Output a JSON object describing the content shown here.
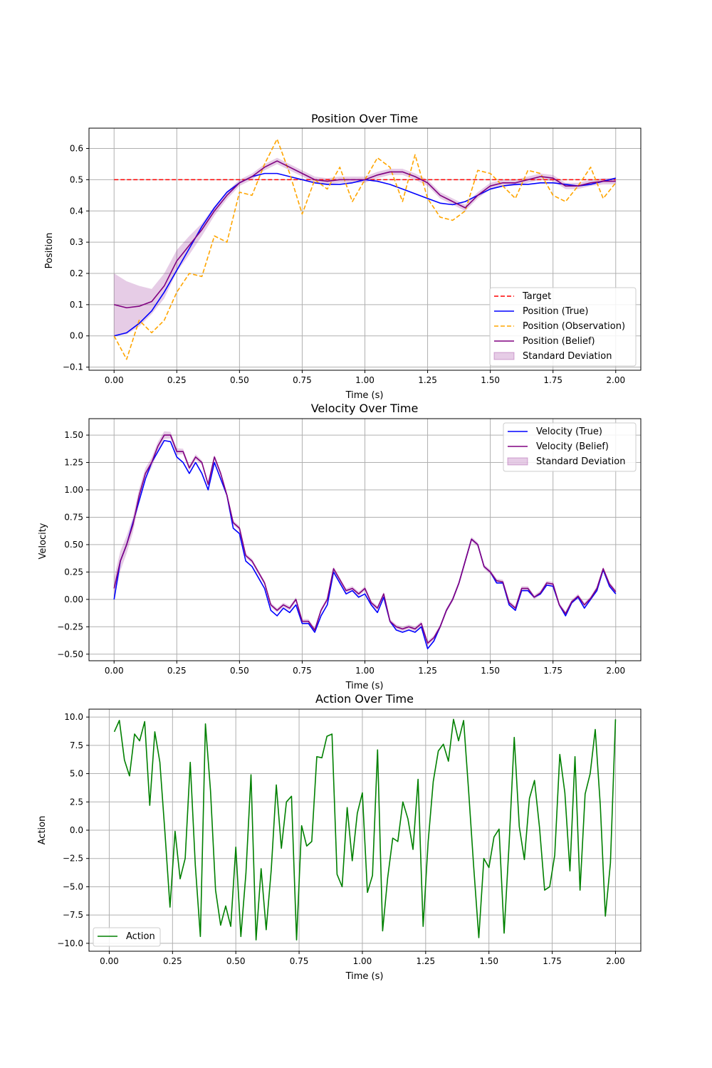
{
  "colors": {
    "target": "#ff0000",
    "true": "#0000ff",
    "observation": "#ffa500",
    "belief": "#800080",
    "std_fill": "#800080",
    "action": "#008000",
    "grid": "#b0b0b0"
  },
  "chart_data": [
    {
      "type": "line",
      "title": "Position Over Time",
      "xlabel": "Time (s)",
      "ylabel": "Position",
      "xlim": [
        -0.1,
        2.1
      ],
      "ylim": [
        -0.11,
        0.665
      ],
      "xticks": [
        "0.00",
        "0.25",
        "0.50",
        "0.75",
        "1.00",
        "1.25",
        "1.50",
        "1.75",
        "2.00"
      ],
      "xtick_values": [
        0,
        0.25,
        0.5,
        0.75,
        1.0,
        1.25,
        1.5,
        1.75,
        2.0
      ],
      "yticks": [
        "−0.1",
        "0.0",
        "0.1",
        "0.2",
        "0.3",
        "0.4",
        "0.5",
        "0.6"
      ],
      "ytick_values": [
        -0.1,
        0,
        0.1,
        0.2,
        0.3,
        0.4,
        0.5,
        0.6
      ],
      "grid": true,
      "legend_position": "lower-right",
      "legend": [
        "Target",
        "Position (True)",
        "Position (Observation)",
        "Position (Belief)",
        "Standard Deviation"
      ],
      "x": [
        0.0,
        0.05,
        0.1,
        0.15,
        0.2,
        0.25,
        0.3,
        0.35,
        0.4,
        0.45,
        0.5,
        0.55,
        0.6,
        0.65,
        0.7,
        0.75,
        0.8,
        0.85,
        0.9,
        0.95,
        1.0,
        1.05,
        1.1,
        1.15,
        1.2,
        1.25,
        1.3,
        1.35,
        1.4,
        1.45,
        1.5,
        1.55,
        1.6,
        1.65,
        1.7,
        1.75,
        1.8,
        1.85,
        1.9,
        1.95,
        2.0
      ],
      "series": [
        {
          "name": "Target",
          "style": "dashed",
          "color": "#ff0000",
          "values": [
            0.5,
            0.5,
            0.5,
            0.5,
            0.5,
            0.5,
            0.5,
            0.5,
            0.5,
            0.5,
            0.5,
            0.5,
            0.5,
            0.5,
            0.5,
            0.5,
            0.5,
            0.5,
            0.5,
            0.5,
            0.5,
            0.5,
            0.5,
            0.5,
            0.5,
            0.5,
            0.5,
            0.5,
            0.5,
            0.5,
            0.5,
            0.5,
            0.5,
            0.5,
            0.5,
            0.5,
            0.5,
            0.5,
            0.5,
            0.5,
            0.5
          ]
        },
        {
          "name": "Position (True)",
          "style": "solid",
          "color": "#0000ff",
          "values": [
            0.0,
            0.01,
            0.04,
            0.08,
            0.14,
            0.21,
            0.28,
            0.35,
            0.41,
            0.46,
            0.49,
            0.51,
            0.52,
            0.52,
            0.51,
            0.5,
            0.49,
            0.485,
            0.485,
            0.49,
            0.5,
            0.495,
            0.485,
            0.47,
            0.455,
            0.44,
            0.425,
            0.42,
            0.43,
            0.45,
            0.47,
            0.48,
            0.485,
            0.485,
            0.49,
            0.49,
            0.485,
            0.48,
            0.485,
            0.495,
            0.505
          ]
        },
        {
          "name": "Position (Observation)",
          "style": "dashed",
          "color": "#ffa500",
          "values": [
            0.0,
            -0.075,
            0.05,
            0.01,
            0.05,
            0.14,
            0.2,
            0.19,
            0.32,
            0.3,
            0.46,
            0.45,
            0.55,
            0.63,
            0.52,
            0.39,
            0.5,
            0.47,
            0.54,
            0.43,
            0.5,
            0.57,
            0.54,
            0.43,
            0.58,
            0.44,
            0.38,
            0.37,
            0.4,
            0.53,
            0.52,
            0.48,
            0.44,
            0.53,
            0.52,
            0.45,
            0.43,
            0.48,
            0.54,
            0.44,
            0.49
          ]
        },
        {
          "name": "Position (Belief)",
          "style": "solid",
          "color": "#800080",
          "values": [
            0.1,
            0.09,
            0.095,
            0.11,
            0.16,
            0.24,
            0.29,
            0.34,
            0.4,
            0.45,
            0.49,
            0.51,
            0.54,
            0.56,
            0.54,
            0.52,
            0.5,
            0.495,
            0.5,
            0.5,
            0.5,
            0.515,
            0.525,
            0.525,
            0.51,
            0.49,
            0.45,
            0.43,
            0.41,
            0.45,
            0.48,
            0.49,
            0.49,
            0.5,
            0.51,
            0.505,
            0.48,
            0.48,
            0.49,
            0.495,
            0.495
          ]
        },
        {
          "name": "Standard Deviation",
          "style": "band",
          "color": "#800080",
          "values": [
            0.1,
            0.09,
            0.095,
            0.11,
            0.16,
            0.24,
            0.29,
            0.34,
            0.4,
            0.45,
            0.49,
            0.51,
            0.54,
            0.56,
            0.54,
            0.52,
            0.5,
            0.495,
            0.5,
            0.5,
            0.5,
            0.515,
            0.525,
            0.525,
            0.51,
            0.49,
            0.45,
            0.43,
            0.41,
            0.45,
            0.48,
            0.49,
            0.49,
            0.5,
            0.51,
            0.505,
            0.48,
            0.48,
            0.49,
            0.495,
            0.495
          ],
          "std": [
            0.1,
            0.085,
            0.065,
            0.04,
            0.04,
            0.035,
            0.03,
            0.02,
            0.015,
            0.012,
            0.01,
            0.01,
            0.01,
            0.01,
            0.01,
            0.01,
            0.01,
            0.01,
            0.01,
            0.01,
            0.01,
            0.01,
            0.01,
            0.01,
            0.01,
            0.01,
            0.01,
            0.01,
            0.01,
            0.01,
            0.01,
            0.01,
            0.01,
            0.01,
            0.01,
            0.01,
            0.01,
            0.01,
            0.01,
            0.01,
            0.01
          ]
        }
      ]
    },
    {
      "type": "line",
      "title": "Velocity Over Time",
      "xlabel": "Time (s)",
      "ylabel": "Velocity",
      "xlim": [
        -0.1,
        2.1
      ],
      "ylim": [
        -0.56,
        1.65
      ],
      "xticks": [
        "0.00",
        "0.25",
        "0.50",
        "0.75",
        "1.00",
        "1.25",
        "1.50",
        "1.75",
        "2.00"
      ],
      "xtick_values": [
        0,
        0.25,
        0.5,
        0.75,
        1.0,
        1.25,
        1.5,
        1.75,
        2.0
      ],
      "yticks": [
        "−0.50",
        "−0.25",
        "0.00",
        "0.25",
        "0.50",
        "0.75",
        "1.00",
        "1.25",
        "1.50"
      ],
      "ytick_values": [
        -0.5,
        -0.25,
        0,
        0.25,
        0.5,
        0.75,
        1.0,
        1.25,
        1.5
      ],
      "grid": true,
      "legend_position": "upper-right",
      "legend": [
        "Velocity (True)",
        "Velocity (Belief)",
        "Standard Deviation"
      ],
      "x": [
        0.0,
        0.025,
        0.05,
        0.075,
        0.1,
        0.125,
        0.15,
        0.175,
        0.2,
        0.225,
        0.25,
        0.275,
        0.3,
        0.325,
        0.35,
        0.375,
        0.4,
        0.425,
        0.45,
        0.475,
        0.5,
        0.525,
        0.55,
        0.575,
        0.6,
        0.625,
        0.65,
        0.675,
        0.7,
        0.725,
        0.75,
        0.775,
        0.8,
        0.825,
        0.85,
        0.875,
        0.9,
        0.925,
        0.95,
        0.975,
        1.0,
        1.025,
        1.05,
        1.075,
        1.1,
        1.125,
        1.15,
        1.175,
        1.2,
        1.225,
        1.25,
        1.275,
        1.3,
        1.325,
        1.35,
        1.375,
        1.4,
        1.425,
        1.45,
        1.475,
        1.5,
        1.525,
        1.55,
        1.575,
        1.6,
        1.625,
        1.65,
        1.675,
        1.7,
        1.725,
        1.75,
        1.775,
        1.8,
        1.825,
        1.85,
        1.875,
        1.9,
        1.925,
        1.95,
        1.975,
        2.0
      ],
      "series": [
        {
          "name": "Velocity (True)",
          "style": "solid",
          "color": "#0000ff",
          "values": [
            0.0,
            0.35,
            0.5,
            0.7,
            0.9,
            1.1,
            1.25,
            1.35,
            1.45,
            1.44,
            1.3,
            1.25,
            1.15,
            1.25,
            1.15,
            1.0,
            1.25,
            1.1,
            0.95,
            0.65,
            0.6,
            0.35,
            0.3,
            0.2,
            0.1,
            -0.1,
            -0.15,
            -0.08,
            -0.12,
            -0.05,
            -0.22,
            -0.22,
            -0.3,
            -0.15,
            -0.05,
            0.25,
            0.15,
            0.05,
            0.08,
            0.02,
            0.05,
            -0.05,
            -0.12,
            0.02,
            -0.2,
            -0.28,
            -0.3,
            -0.28,
            -0.3,
            -0.25,
            -0.45,
            -0.38,
            -0.25,
            -0.1,
            0.0,
            0.15,
            0.35,
            0.55,
            0.5,
            0.3,
            0.25,
            0.15,
            0.15,
            -0.05,
            -0.1,
            0.08,
            0.08,
            0.02,
            0.05,
            0.13,
            0.12,
            -0.05,
            -0.15,
            -0.03,
            0.02,
            -0.08,
            0.0,
            0.08,
            0.27,
            0.12,
            0.05
          ]
        },
        {
          "name": "Velocity (Belief)",
          "style": "solid",
          "color": "#800080",
          "values": [
            0.1,
            0.35,
            0.5,
            0.68,
            0.95,
            1.15,
            1.25,
            1.4,
            1.5,
            1.5,
            1.35,
            1.35,
            1.2,
            1.3,
            1.25,
            1.05,
            1.3,
            1.15,
            0.95,
            0.7,
            0.65,
            0.4,
            0.35,
            0.25,
            0.15,
            -0.05,
            -0.1,
            -0.05,
            -0.08,
            0.0,
            -0.2,
            -0.2,
            -0.28,
            -0.1,
            0.0,
            0.28,
            0.18,
            0.08,
            0.1,
            0.05,
            0.1,
            -0.03,
            -0.08,
            0.05,
            -0.2,
            -0.25,
            -0.27,
            -0.25,
            -0.27,
            -0.22,
            -0.4,
            -0.35,
            -0.25,
            -0.1,
            0.0,
            0.15,
            0.35,
            0.55,
            0.5,
            0.3,
            0.25,
            0.17,
            0.16,
            -0.03,
            -0.08,
            0.1,
            0.1,
            0.02,
            0.06,
            0.15,
            0.14,
            -0.05,
            -0.13,
            -0.02,
            0.03,
            -0.05,
            0.01,
            0.1,
            0.28,
            0.14,
            0.07
          ]
        },
        {
          "name": "Standard Deviation",
          "style": "band",
          "color": "#800080",
          "values": [
            0.1,
            0.35,
            0.5,
            0.68,
            0.95,
            1.15,
            1.25,
            1.4,
            1.5,
            1.5,
            1.35,
            1.35,
            1.2,
            1.3,
            1.25,
            1.05,
            1.3,
            1.15,
            0.95,
            0.7,
            0.65,
            0.4,
            0.35,
            0.25,
            0.15,
            -0.05,
            -0.1,
            -0.05,
            -0.08,
            0.0,
            -0.2,
            -0.2,
            -0.28,
            -0.1,
            0.0,
            0.28,
            0.18,
            0.08,
            0.1,
            0.05,
            0.1,
            -0.03,
            -0.08,
            0.05,
            -0.2,
            -0.25,
            -0.27,
            -0.25,
            -0.27,
            -0.22,
            -0.4,
            -0.35,
            -0.25,
            -0.1,
            0.0,
            0.15,
            0.35,
            0.55,
            0.5,
            0.3,
            0.25,
            0.17,
            0.16,
            -0.03,
            -0.08,
            0.1,
            0.1,
            0.02,
            0.06,
            0.15,
            0.14,
            -0.05,
            -0.13,
            -0.02,
            0.03,
            -0.05,
            0.01,
            0.1,
            0.28,
            0.14,
            0.07
          ],
          "std": [
            0.1,
            0.09,
            0.08,
            0.07,
            0.06,
            0.05,
            0.045,
            0.04,
            0.035,
            0.03,
            0.03,
            0.025,
            0.025,
            0.025,
            0.02,
            0.02,
            0.02,
            0.02,
            0.02,
            0.02,
            0.02,
            0.02,
            0.02,
            0.02,
            0.02,
            0.02,
            0.02,
            0.02,
            0.02,
            0.02,
            0.02,
            0.02,
            0.02,
            0.02,
            0.02,
            0.02,
            0.02,
            0.02,
            0.02,
            0.02,
            0.02,
            0.02,
            0.02,
            0.02,
            0.02,
            0.02,
            0.02,
            0.02,
            0.02,
            0.02,
            0.02,
            0.02,
            0.02,
            0.02,
            0.02,
            0.02,
            0.02,
            0.02,
            0.02,
            0.02,
            0.02,
            0.02,
            0.02,
            0.02,
            0.02,
            0.02,
            0.02,
            0.02,
            0.02,
            0.02,
            0.02,
            0.02,
            0.02,
            0.02,
            0.02,
            0.02,
            0.02,
            0.02,
            0.02,
            0.02,
            0.02
          ]
        }
      ]
    },
    {
      "type": "line",
      "title": "Action Over Time",
      "xlabel": "Time (s)",
      "ylabel": "Action",
      "xlim": [
        -0.08,
        2.1
      ],
      "ylim": [
        -10.7,
        10.7
      ],
      "xticks": [
        "0.00",
        "0.25",
        "0.50",
        "0.75",
        "1.00",
        "1.25",
        "1.50",
        "1.75",
        "2.00"
      ],
      "xtick_values": [
        0,
        0.25,
        0.5,
        0.75,
        1.0,
        1.25,
        1.5,
        1.75,
        2.0
      ],
      "yticks": [
        "−10.0",
        "−7.5",
        "−5.0",
        "−2.5",
        "0.0",
        "2.5",
        "5.0",
        "7.5",
        "10.0"
      ],
      "ytick_values": [
        -10,
        -7.5,
        -5,
        -2.5,
        0,
        2.5,
        5,
        7.5,
        10
      ],
      "grid": true,
      "legend_position": "lower-left",
      "legend": [
        "Action"
      ],
      "x": [
        0.02,
        0.04,
        0.06,
        0.08,
        0.1,
        0.12,
        0.14,
        0.16,
        0.18,
        0.2,
        0.22,
        0.24,
        0.26,
        0.28,
        0.3,
        0.32,
        0.34,
        0.36,
        0.38,
        0.4,
        0.42,
        0.44,
        0.46,
        0.48,
        0.5,
        0.52,
        0.54,
        0.56,
        0.58,
        0.6,
        0.62,
        0.64,
        0.66,
        0.68,
        0.7,
        0.72,
        0.74,
        0.76,
        0.78,
        0.8,
        0.82,
        0.84,
        0.86,
        0.88,
        0.9,
        0.92,
        0.94,
        0.96,
        0.98,
        1.0,
        1.02,
        1.04,
        1.06,
        1.08,
        1.1,
        1.12,
        1.14,
        1.16,
        1.18,
        1.2,
        1.22,
        1.24,
        1.26,
        1.28,
        1.3,
        1.32,
        1.34,
        1.36,
        1.38,
        1.4,
        1.42,
        1.44,
        1.46,
        1.48,
        1.5,
        1.52,
        1.54,
        1.56,
        1.58,
        1.6,
        1.62,
        1.64,
        1.66,
        1.68,
        1.7,
        1.72,
        1.74,
        1.76,
        1.78,
        1.8,
        1.82,
        1.84,
        1.86,
        1.88,
        1.9,
        1.92,
        1.94,
        1.96,
        1.98,
        2.0
      ],
      "series": [
        {
          "name": "Action",
          "style": "solid",
          "color": "#008000",
          "values": [
            8.7,
            9.7,
            6.2,
            4.8,
            8.5,
            7.9,
            9.6,
            2.2,
            8.7,
            6.0,
            -0.2,
            -6.8,
            -0.1,
            -4.3,
            -2.5,
            6.0,
            -3.1,
            -9.4,
            9.4,
            3.5,
            -5.3,
            -8.4,
            -6.7,
            -8.5,
            -1.5,
            -9.4,
            -3.8,
            4.9,
            -9.7,
            -3.4,
            -8.8,
            -3.5,
            4.0,
            -1.6,
            2.5,
            3.0,
            -9.7,
            0.4,
            -1.4,
            -1.0,
            6.5,
            6.4,
            8.3,
            8.5,
            -3.9,
            -5.0,
            2.0,
            -2.7,
            1.5,
            3.3,
            -5.5,
            -4.0,
            7.1,
            -8.9,
            -4.2,
            -0.7,
            -1.0,
            2.5,
            1.0,
            -1.7,
            4.5,
            -8.5,
            -1.0,
            4.3,
            7.0,
            7.6,
            6.1,
            9.8,
            7.9,
            9.7,
            3.4,
            -3.3,
            -9.5,
            -2.5,
            -3.3,
            -0.6,
            0.1,
            -9.1,
            -1.1,
            8.2,
            0.3,
            -2.6,
            2.8,
            4.4,
            0.2,
            -5.3,
            -5.0,
            -2.2,
            6.7,
            3.3,
            -3.6,
            6.5,
            -5.3,
            3.2,
            5.0,
            8.9,
            2.2,
            -7.6,
            -2.9,
            9.8
          ]
        }
      ]
    }
  ]
}
